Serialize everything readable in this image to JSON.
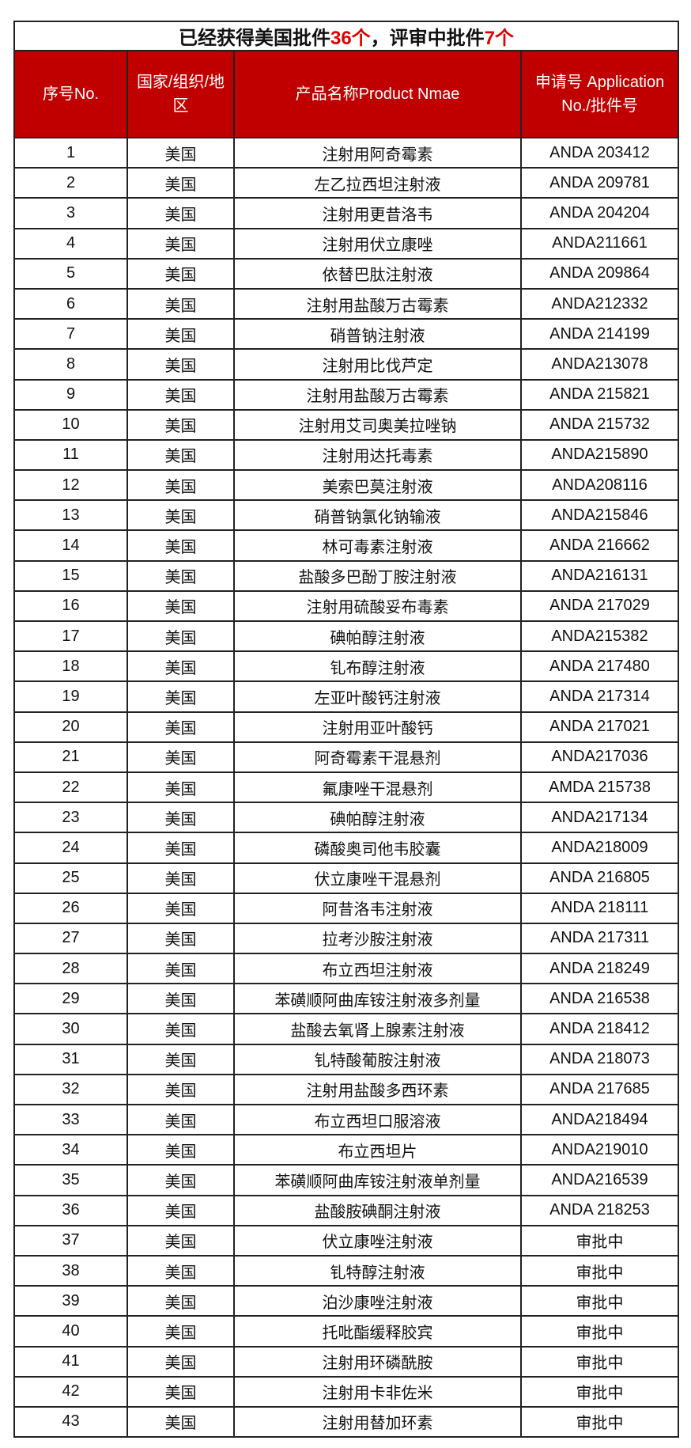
{
  "title": {
    "part1": "已经获得美国批件",
    "approved_count": "36个",
    "part2": "，评审中批件",
    "pending_count": "7个",
    "highlight_color": "#e00000"
  },
  "header": {
    "no": "序号No.",
    "country": "国家/组织/地区",
    "product": "产品名称Product Nmae",
    "application": "申请号 Application No./批件号",
    "bg_color": "#c00000"
  },
  "rows": [
    {
      "no": "1",
      "country": "美国",
      "product": "注射用阿奇霉素",
      "app": "ANDA 203412"
    },
    {
      "no": "2",
      "country": "美国",
      "product": "左乙拉西坦注射液",
      "app": "ANDA 209781"
    },
    {
      "no": "3",
      "country": "美国",
      "product": "注射用更昔洛韦",
      "app": "ANDA 204204"
    },
    {
      "no": "4",
      "country": "美国",
      "product": "注射用伏立康唑",
      "app": "ANDA211661"
    },
    {
      "no": "5",
      "country": "美国",
      "product": "依替巴肽注射液",
      "app": "ANDA 209864"
    },
    {
      "no": "6",
      "country": "美国",
      "product": "注射用盐酸万古霉素",
      "app": "ANDA212332"
    },
    {
      "no": "7",
      "country": "美国",
      "product": "硝普钠注射液",
      "app": "ANDA 214199"
    },
    {
      "no": "8",
      "country": "美国",
      "product": "注射用比伐芦定",
      "app": "ANDA213078"
    },
    {
      "no": "9",
      "country": "美国",
      "product": "注射用盐酸万古霉素",
      "app": "ANDA 215821"
    },
    {
      "no": "10",
      "country": "美国",
      "product": "注射用艾司奥美拉唑钠",
      "app": "ANDA 215732"
    },
    {
      "no": "11",
      "country": "美国",
      "product": "注射用达托毒素",
      "app": "ANDA215890"
    },
    {
      "no": "12",
      "country": "美国",
      "product": "美索巴莫注射液",
      "app": "ANDA208116"
    },
    {
      "no": "13",
      "country": "美国",
      "product": "硝普钠氯化钠输液",
      "app": "ANDA215846"
    },
    {
      "no": "14",
      "country": "美国",
      "product": "林可毒素注射液",
      "app": "ANDA 216662"
    },
    {
      "no": "15",
      "country": "美国",
      "product": "盐酸多巴酚丁胺注射液",
      "app": "ANDA216131"
    },
    {
      "no": "16",
      "country": "美国",
      "product": "注射用硫酸妥布毒素",
      "app": "ANDA 217029"
    },
    {
      "no": "17",
      "country": "美国",
      "product": "碘帕醇注射液",
      "app": "ANDA215382"
    },
    {
      "no": "18",
      "country": "美国",
      "product": "钆布醇注射液",
      "app": "ANDA 217480"
    },
    {
      "no": "19",
      "country": "美国",
      "product": "左亚叶酸钙注射液",
      "app": "ANDA 217314"
    },
    {
      "no": "20",
      "country": "美国",
      "product": "注射用亚叶酸钙",
      "app": "ANDA 217021"
    },
    {
      "no": "21",
      "country": "美国",
      "product": "阿奇霉素干混悬剂",
      "app": "ANDA217036"
    },
    {
      "no": "22",
      "country": "美国",
      "product": "氟康唑干混悬剂",
      "app": "AMDA 215738"
    },
    {
      "no": "23",
      "country": "美国",
      "product": "碘帕醇注射液",
      "app": "ANDA217134"
    },
    {
      "no": "24",
      "country": "美国",
      "product": "磷酸奥司他韦胶囊",
      "app": "ANDA218009"
    },
    {
      "no": "25",
      "country": "美国",
      "product": "伏立康唑干混悬剂",
      "app": "ANDA 216805"
    },
    {
      "no": "26",
      "country": "美国",
      "product": "阿昔洛韦注射液",
      "app": "ANDA 218111"
    },
    {
      "no": "27",
      "country": "美国",
      "product": "拉考沙胺注射液",
      "app": "ANDA 217311"
    },
    {
      "no": "28",
      "country": "美国",
      "product": "布立西坦注射液",
      "app": "ANDA 218249"
    },
    {
      "no": "29",
      "country": "美国",
      "product": "苯磺顺阿曲库铵注射液多剂量",
      "app": "ANDA 216538"
    },
    {
      "no": "30",
      "country": "美国",
      "product": "盐酸去氧肾上腺素注射液",
      "app": "ANDA 218412"
    },
    {
      "no": "31",
      "country": "美国",
      "product": "钆特酸葡胺注射液",
      "app": "ANDA 218073"
    },
    {
      "no": "32",
      "country": "美国",
      "product": "注射用盐酸多西环素",
      "app": "ANDA 217685"
    },
    {
      "no": "33",
      "country": "美国",
      "product": "布立西坦口服溶液",
      "app": "ANDA218494"
    },
    {
      "no": "34",
      "country": "美国",
      "product": "布立西坦片",
      "app": "ANDA219010"
    },
    {
      "no": "35",
      "country": "美国",
      "product": "苯磺顺阿曲库铵注射液单剂量",
      "app": "ANDA216539"
    },
    {
      "no": "36",
      "country": "美国",
      "product": "盐酸胺碘酮注射液",
      "app": "ANDA 218253"
    },
    {
      "no": "37",
      "country": "美国",
      "product": "伏立康唑注射液",
      "app": "审批中"
    },
    {
      "no": "38",
      "country": "美国",
      "product": "钆特醇注射液",
      "app": "审批中"
    },
    {
      "no": "39",
      "country": "美国",
      "product": "泊沙康唑注射液",
      "app": "审批中"
    },
    {
      "no": "40",
      "country": "美国",
      "product": "托吡酯缓释胶宾",
      "app": "审批中"
    },
    {
      "no": "41",
      "country": "美国",
      "product": "注射用环磷酰胺",
      "app": "审批中"
    },
    {
      "no": "42",
      "country": "美国",
      "product": "注射用卡非佐米",
      "app": "审批中"
    },
    {
      "no": "43",
      "country": "美国",
      "product": "注射用替加环素",
      "app": "审批中"
    }
  ]
}
